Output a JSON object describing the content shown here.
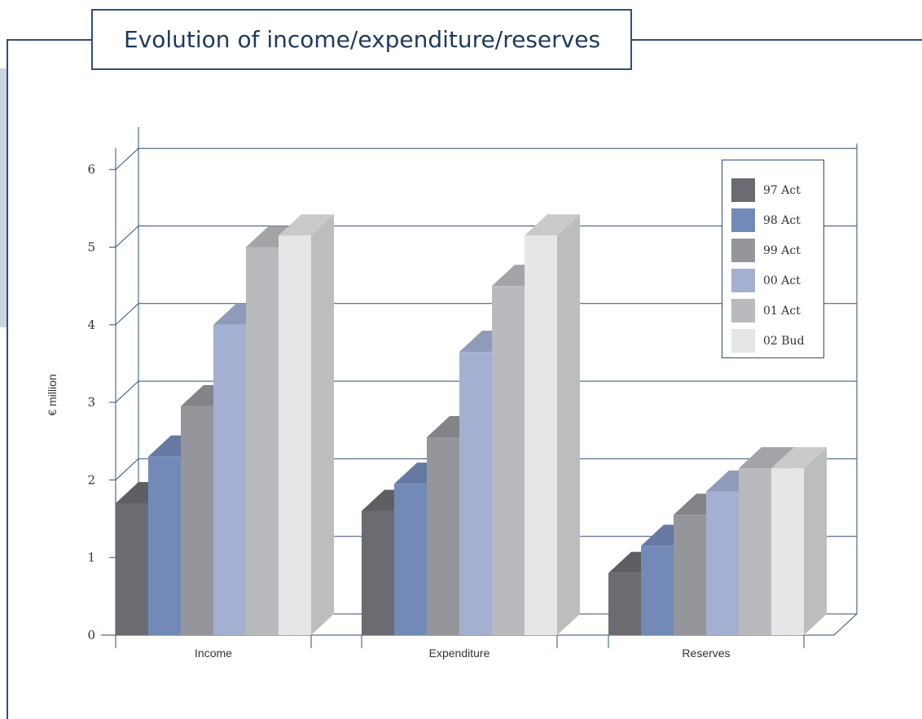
{
  "chart_data": {
    "type": "bar",
    "title": "Evolution of income/expenditure/reserves",
    "ylabel": "€ million",
    "xlabel": "",
    "categories": [
      "Income",
      "Expenditure",
      "Reserves"
    ],
    "ylim": [
      0,
      6
    ],
    "yticks": [
      0,
      1,
      2,
      3,
      4,
      5,
      6
    ],
    "grid": true,
    "legend_position": "top-right",
    "series": [
      {
        "name": "97 Act",
        "color": "#6a6c72",
        "values": [
          1.7,
          1.6,
          0.8
        ]
      },
      {
        "name": "98 Act",
        "color": "#738ab8",
        "values": [
          2.3,
          1.95,
          1.15
        ]
      },
      {
        "name": "99 Act",
        "color": "#94969b",
        "values": [
          2.95,
          2.55,
          1.55
        ]
      },
      {
        "name": "00 Act",
        "color": "#a4b0d2",
        "values": [
          4.0,
          3.65,
          1.85
        ]
      },
      {
        "name": "01 Act",
        "color": "#b9babe",
        "values": [
          5.0,
          4.5,
          2.15
        ]
      },
      {
        "name": "02 Bud",
        "color": "#e5e6e8",
        "values": [
          5.15,
          5.15,
          2.15
        ]
      }
    ]
  }
}
